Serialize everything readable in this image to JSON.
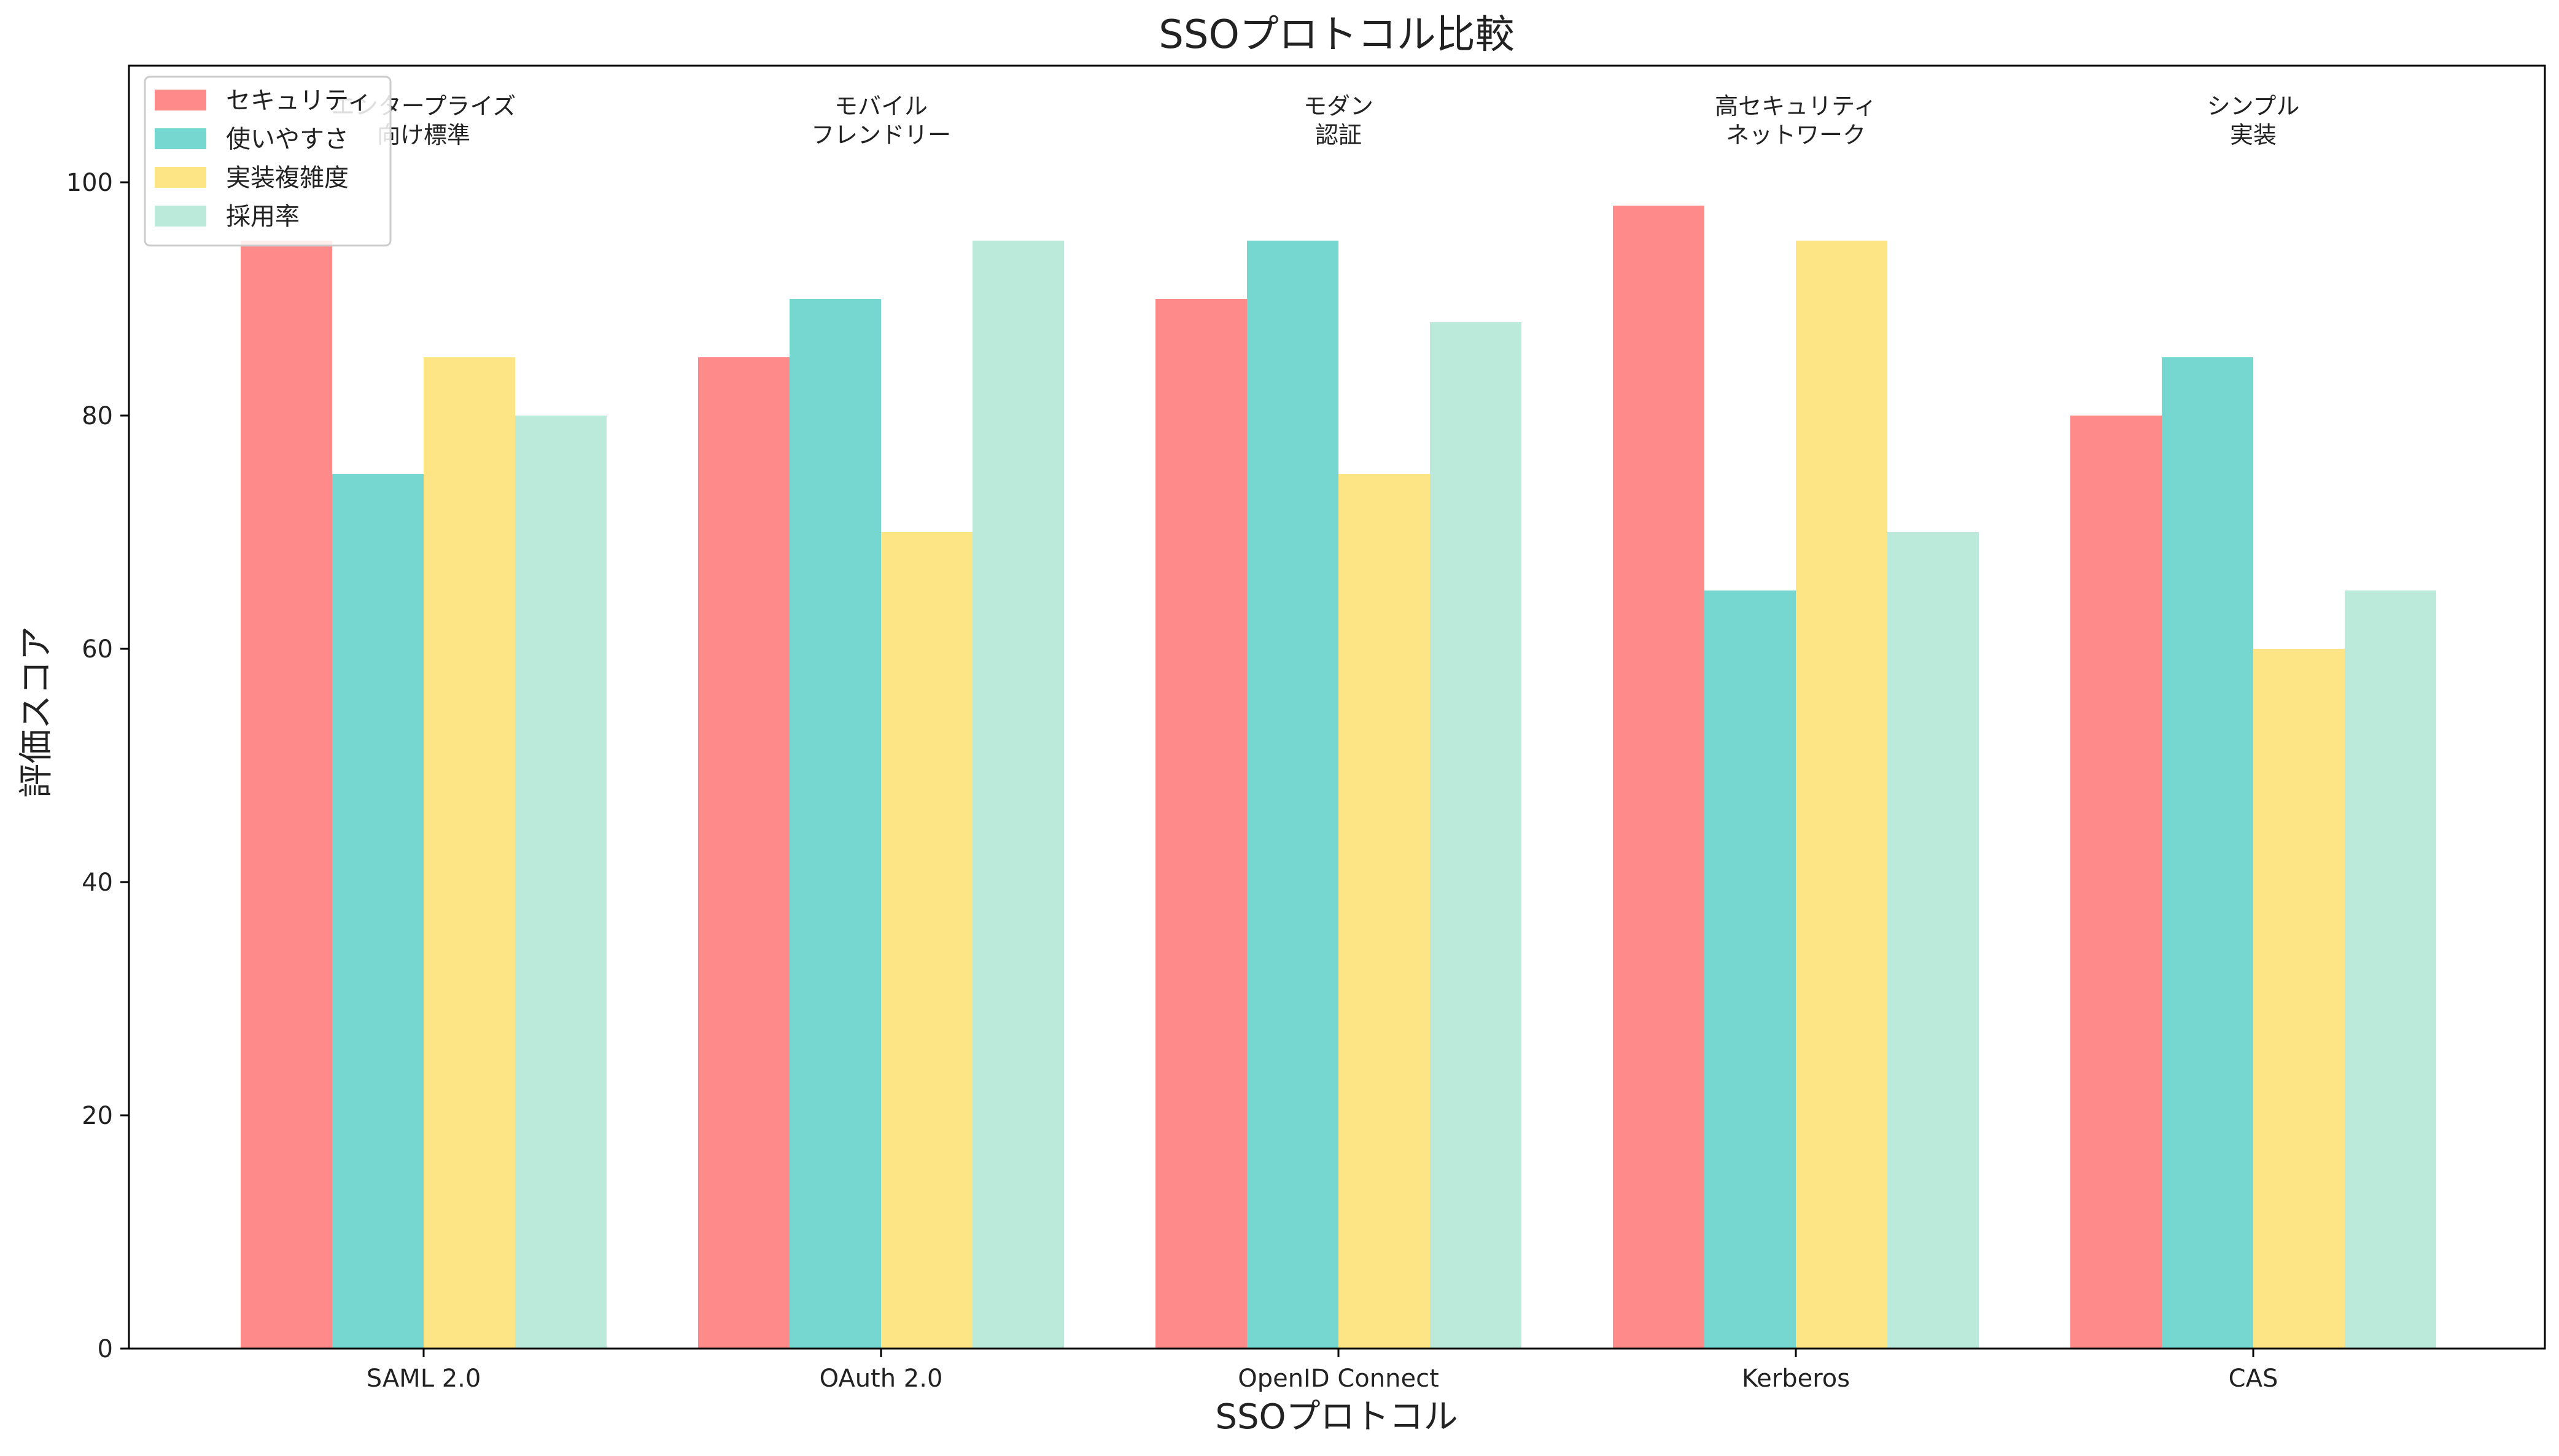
{
  "chart_data": {
    "type": "bar",
    "title": "SSOプロトコル比較",
    "xlabel": "SSOプロトコル",
    "ylabel": "評価スコア",
    "ylim": [
      0,
      110
    ],
    "yticks": [
      0,
      20,
      40,
      60,
      80,
      100
    ],
    "grid": false,
    "legend_position": "top-left",
    "categories": [
      "SAML 2.0",
      "OAuth 2.0",
      "OpenID Connect",
      "Kerberos",
      "CAS"
    ],
    "annotations": [
      [
        "エンタープライズ",
        "向け標準"
      ],
      [
        "モバイル",
        "フレンドリー"
      ],
      [
        "モダン",
        "認証"
      ],
      [
        "高セキュリティ",
        "ネットワーク"
      ],
      [
        "シンプル",
        "実装"
      ]
    ],
    "series": [
      {
        "name": "セキュリティ",
        "color": "#ff8a8a",
        "values": [
          95,
          85,
          90,
          98,
          80
        ]
      },
      {
        "name": "使いやすさ",
        "color": "#76d7d0",
        "values": [
          75,
          90,
          95,
          65,
          85
        ]
      },
      {
        "name": "実装複雑度",
        "color": "#fde485",
        "values": [
          85,
          70,
          75,
          95,
          60
        ]
      },
      {
        "name": "採用率",
        "color": "#bbeada",
        "values": [
          80,
          95,
          88,
          70,
          65
        ]
      }
    ]
  }
}
